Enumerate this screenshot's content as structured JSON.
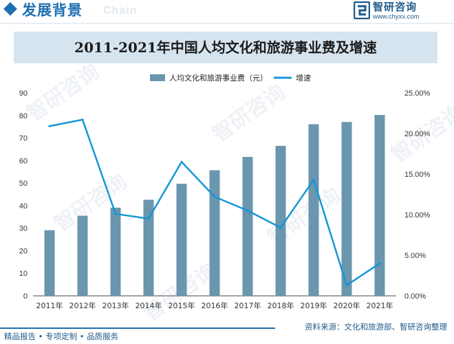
{
  "header": {
    "title": "发展背景",
    "ghost_text": "Chain",
    "brand_name": "智研咨询",
    "brand_url": "www.chyxx.com"
  },
  "watermark_text": "智研咨询",
  "colors": {
    "accent": "#1e6fb0",
    "bar": "#6a96ae",
    "line": "#1596d6",
    "banner": "#d6e4ef"
  },
  "chart_data": {
    "type": "bar",
    "title": "2011-2021年中国人均文化和旅游事业费及增速",
    "categories": [
      "2011年",
      "2012年",
      "2013年",
      "2014年",
      "2015年",
      "2016年",
      "2017年",
      "2018年",
      "2019年",
      "2020年",
      "2021年"
    ],
    "series": [
      {
        "name": "人均文化和旅游事业费（元）",
        "type": "bar",
        "axis": "left",
        "values": [
          29.1,
          35.5,
          39.1,
          42.6,
          49.7,
          55.7,
          61.6,
          66.5,
          76.1,
          77.1,
          80.2
        ]
      },
      {
        "name": "增速",
        "type": "line",
        "axis": "right",
        "values": [
          20.9,
          21.7,
          10.1,
          9.5,
          16.5,
          12.2,
          10.5,
          8.4,
          14.3,
          1.3,
          4.0
        ]
      }
    ],
    "y_left": {
      "min": 0,
      "max": 90,
      "ticks": [
        0,
        10,
        20,
        30,
        40,
        50,
        60,
        70,
        80,
        90
      ]
    },
    "y_right": {
      "min": 0,
      "max": 25,
      "ticks": [
        "0.00%",
        "5.00%",
        "10.00%",
        "15.00%",
        "20.00%",
        "25.00%"
      ]
    },
    "grid": false,
    "legend_position": "top-center"
  },
  "footer": {
    "source": "资料来源：文化和旅游部、智研咨询整理",
    "tagline": "精品报告 • 专项定制 • 品质服务"
  }
}
